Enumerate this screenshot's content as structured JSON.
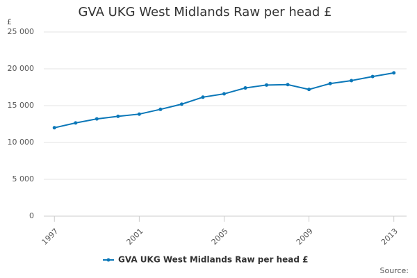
{
  "chart_data": {
    "type": "line",
    "title": "GVA UKG West Midlands Raw per head £",
    "y_unit": "£",
    "x": [
      1997,
      1998,
      1999,
      2000,
      2001,
      2002,
      2003,
      2004,
      2005,
      2006,
      2007,
      2008,
      2009,
      2010,
      2011,
      2012,
      2013
    ],
    "series": [
      {
        "name": "GVA UKG West Midlands Raw per head £",
        "color": "#0a77b8",
        "values": [
          12000,
          12650,
          13200,
          13550,
          13850,
          14500,
          15200,
          16150,
          16600,
          17400,
          17800,
          17850,
          17200,
          18000,
          18400,
          18950,
          19450
        ]
      }
    ],
    "xlim": [
      1996.5,
      2013.6
    ],
    "xticks": [
      1997,
      2001,
      2005,
      2009,
      2013
    ],
    "ylim": [
      0,
      25000
    ],
    "yticks": [
      0,
      {
        "value": 5000,
        "label": "5 000"
      },
      {
        "value": 10000,
        "label": "10 000"
      },
      {
        "value": 15000,
        "label": "15 000"
      },
      {
        "value": 20000,
        "label": "20 000"
      },
      {
        "value": 25000,
        "label": "25 000"
      }
    ],
    "grid": true,
    "source": "Source:"
  }
}
